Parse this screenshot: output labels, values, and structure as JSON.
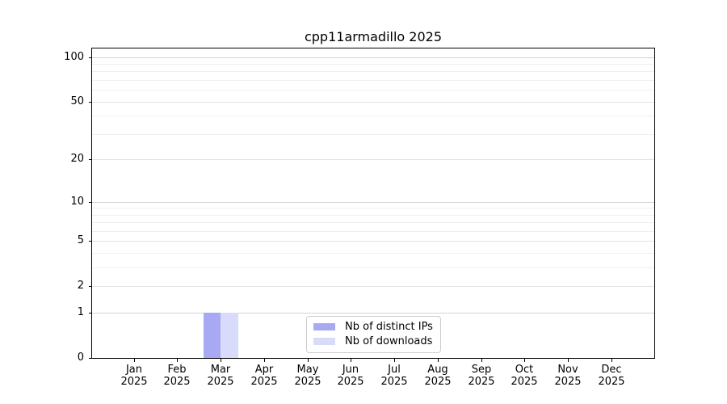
{
  "chart_data": {
    "type": "bar",
    "title": "cpp11armadillo 2025",
    "x_tick_months": [
      "Jan",
      "Feb",
      "Mar",
      "Apr",
      "May",
      "Jun",
      "Jul",
      "Aug",
      "Sep",
      "Oct",
      "Nov",
      "Dec"
    ],
    "x_tick_year": "2025",
    "y_ticks": [
      0,
      1,
      2,
      5,
      10,
      20,
      50,
      100
    ],
    "y_scale": "log10(1+y)",
    "ylim": [
      0,
      114
    ],
    "grid": "horizontal",
    "grid_major_values": [
      1,
      10,
      100
    ],
    "grid_mid_values": [
      2,
      5,
      20,
      50
    ],
    "grid_minor_values": [
      3,
      4,
      6,
      7,
      8,
      9,
      30,
      40,
      60,
      70,
      80,
      90
    ],
    "legend_position": "lower center, inside plot",
    "series": [
      {
        "name": "Nb of distinct IPs",
        "color": "#a7aaf2",
        "values": [
          0,
          0,
          1,
          0,
          0,
          0,
          0,
          0,
          0,
          0,
          0,
          0
        ]
      },
      {
        "name": "Nb of downloads",
        "color": "#d9dbfa",
        "values": [
          0,
          0,
          1,
          0,
          0,
          0,
          0,
          0,
          0,
          0,
          0,
          0
        ]
      }
    ],
    "colors": {
      "grid_major": "#d4d4d4",
      "grid_mid": "#e2e2e2",
      "grid_minor": "#efefef",
      "axis": "#000000",
      "legend_border": "#cccccc"
    }
  }
}
